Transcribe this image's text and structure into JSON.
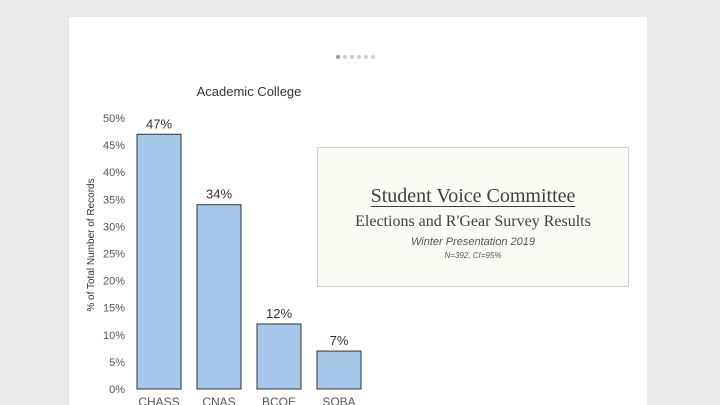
{
  "chart_data": {
    "type": "bar",
    "title": "Academic College",
    "ylabel": "% of Total Number of Records",
    "xlabel": "",
    "categories": [
      "CHASS",
      "CNAS",
      "BCOE",
      "SOBA"
    ],
    "values": [
      47,
      34,
      12,
      7
    ],
    "data_labels": [
      "47%",
      "34%",
      "12%",
      "7%"
    ],
    "ylim": [
      0,
      50
    ],
    "yticks": [
      0,
      5,
      10,
      15,
      20,
      25,
      30,
      35,
      40,
      45,
      50
    ],
    "ytick_labels": [
      "0%",
      "5%",
      "10%",
      "15%",
      "20%",
      "25%",
      "30%",
      "35%",
      "40%",
      "45%",
      "50%"
    ],
    "grid": false,
    "bar_color": "#a6c8ea",
    "bar_edge_color": "#333333"
  },
  "infobox": {
    "title": "Student Voice Committee",
    "subtitle": "Elections and R'Gear Survey Results",
    "line1": "Winter Presentation 2019",
    "line2": "N=392, CI=95%"
  },
  "pager": {
    "count": 6,
    "active": 1
  }
}
